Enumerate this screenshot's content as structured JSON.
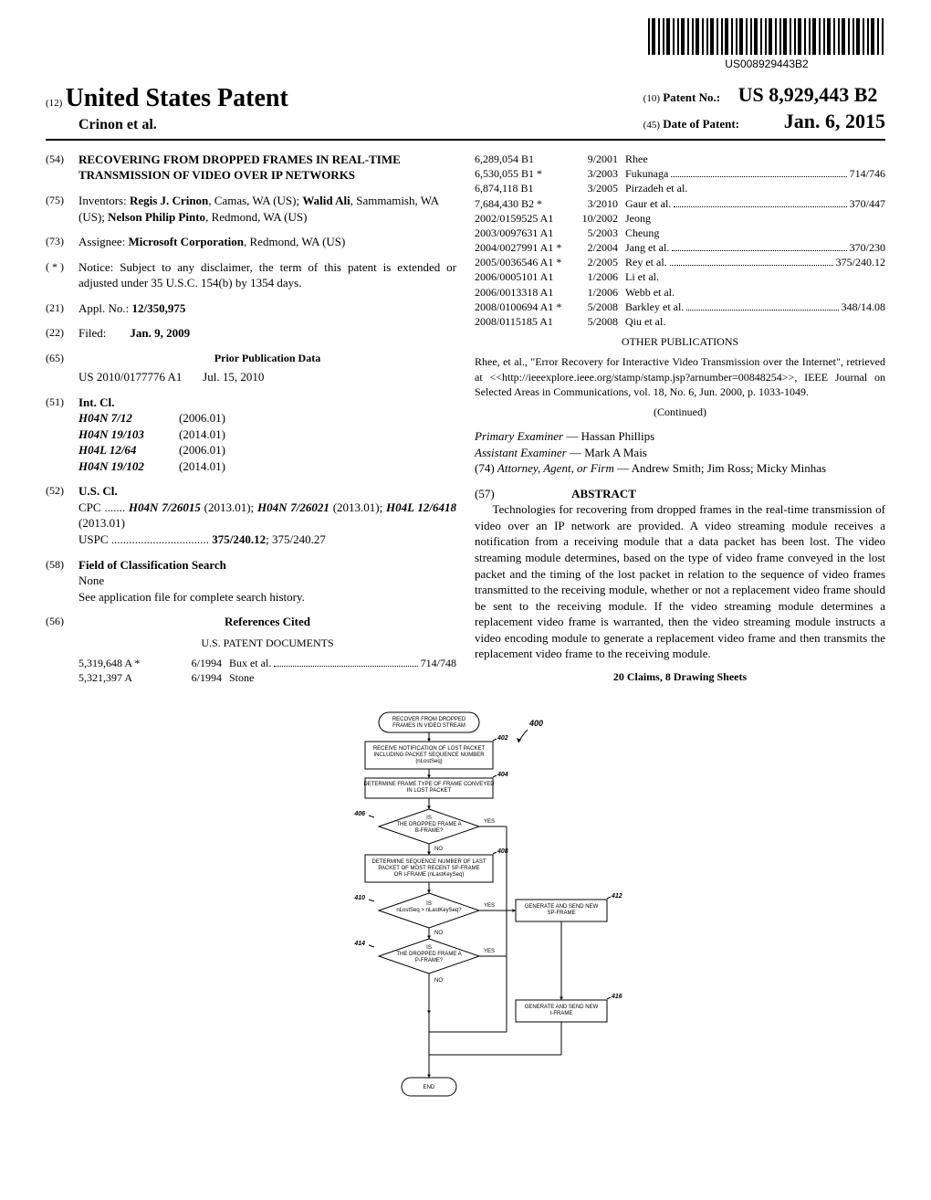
{
  "barcode_text": "US008929443B2",
  "header": {
    "num12": "(12)",
    "usp": "United States Patent",
    "authors": "Crinon et al.",
    "num10": "(10)",
    "patent_no_label": "Patent No.:",
    "patent_no": "US 8,929,443 B2",
    "num45": "(45)",
    "date_label": "Date of Patent:",
    "date": "Jan. 6, 2015"
  },
  "s54": {
    "num": "(54)",
    "title": "RECOVERING FROM DROPPED FRAMES IN REAL-TIME TRANSMISSION OF VIDEO OVER IP NETWORKS"
  },
  "s75": {
    "num": "(75)",
    "label": "Inventors:",
    "text": "Regis J. Crinon, Camas, WA (US); Walid Ali, Sammamish, WA (US); Nelson Philip Pinto, Redmond, WA (US)",
    "b1": "Regis J. Crinon",
    "b2": "Walid Ali",
    "b3": "Nelson Philip Pinto"
  },
  "s73": {
    "num": "(73)",
    "label": "Assignee:",
    "text": "Microsoft Corporation, Redmond, WA (US)",
    "b1": "Microsoft Corporation"
  },
  "snotice": {
    "num": "( * )",
    "label": "Notice:",
    "text": "Subject to any disclaimer, the term of this patent is extended or adjusted under 35 U.S.C. 154(b) by 1354 days."
  },
  "s21": {
    "num": "(21)",
    "label": "Appl. No.:",
    "val": "12/350,975"
  },
  "s22": {
    "num": "(22)",
    "label": "Filed:",
    "val": "Jan. 9, 2009"
  },
  "s65": {
    "num": "(65)",
    "title": "Prior Publication Data",
    "pub": "US 2010/0177776 A1",
    "date": "Jul. 15, 2010"
  },
  "s51": {
    "num": "(51)",
    "label": "Int. Cl.",
    "rows": [
      {
        "code": "H04N 7/12",
        "yr": "(2006.01)"
      },
      {
        "code": "H04N 19/103",
        "yr": "(2014.01)"
      },
      {
        "code": "H04L 12/64",
        "yr": "(2006.01)"
      },
      {
        "code": "H04N 19/102",
        "yr": "(2014.01)"
      }
    ]
  },
  "s52": {
    "num": "(52)",
    "label": "U.S. Cl.",
    "cpc_label": "CPC",
    "cpc_dots": ".......",
    "cpc_text": "H04N 7/26015 (2013.01); H04N 7/26021 (2013.01); H04L 12/6418 (2013.01)",
    "uspc_label": "USPC",
    "uspc_dots": ".................................",
    "uspc_text": "375/240.12; 375/240.27",
    "b1": "H04N 7/26015",
    "b2": "H04N 7/26021",
    "b3": "H04L 12/6418",
    "bold_uspc": "375/240.12"
  },
  "s58": {
    "num": "(58)",
    "label": "Field of Classification Search",
    "none": "None",
    "text": "See application file for complete search history."
  },
  "s56": {
    "num": "(56)",
    "title": "References Cited",
    "sub": "U.S. PATENT DOCUMENTS",
    "left_rows": [
      {
        "c1": "5,319,648 A *",
        "c2": "6/1994",
        "c3": "Bux et al.",
        "tail": "714/748",
        "has_tail": true
      },
      {
        "c1": "5,321,397 A",
        "c2": "6/1994",
        "c3": "Stone",
        "tail": "",
        "has_tail": false
      }
    ]
  },
  "right_cites": [
    {
      "c1": "6,289,054 B1",
      "c2": "9/2001",
      "c3": "Rhee",
      "tail": "",
      "has_tail": false
    },
    {
      "c1": "6,530,055 B1 *",
      "c2": "3/2003",
      "c3": "Fukunaga",
      "tail": "714/746",
      "has_tail": true
    },
    {
      "c1": "6,874,118 B1",
      "c2": "3/2005",
      "c3": "Pirzadeh et al.",
      "tail": "",
      "has_tail": false
    },
    {
      "c1": "7,684,430 B2 *",
      "c2": "3/2010",
      "c3": "Gaur et al.",
      "tail": "370/447",
      "has_tail": true
    },
    {
      "c1": "2002/0159525 A1",
      "c2": "10/2002",
      "c3": "Jeong",
      "tail": "",
      "has_tail": false
    },
    {
      "c1": "2003/0097631 A1",
      "c2": "5/2003",
      "c3": "Cheung",
      "tail": "",
      "has_tail": false
    },
    {
      "c1": "2004/0027991 A1 *",
      "c2": "2/2004",
      "c3": "Jang et al.",
      "tail": "370/230",
      "has_tail": true
    },
    {
      "c1": "2005/0036546 A1 *",
      "c2": "2/2005",
      "c3": "Rey et al.",
      "tail": "375/240.12",
      "has_tail": true
    },
    {
      "c1": "2006/0005101 A1",
      "c2": "1/2006",
      "c3": "Li et al.",
      "tail": "",
      "has_tail": false
    },
    {
      "c1": "2006/0013318 A1",
      "c2": "1/2006",
      "c3": "Webb et al.",
      "tail": "",
      "has_tail": false
    },
    {
      "c1": "2008/0100694 A1 *",
      "c2": "5/2008",
      "c3": "Barkley et al.",
      "tail": "348/14.08",
      "has_tail": true
    },
    {
      "c1": "2008/0115185 A1",
      "c2": "5/2008",
      "c3": "Qiu et al.",
      "tail": "",
      "has_tail": false
    }
  ],
  "other_pubs": {
    "title": "OTHER PUBLICATIONS",
    "text": "Rhee, et al., \"Error Recovery for Interactive Video Transmission over the Internet\", retrieved at <<http://ieeexplore.ieee.org/stamp/stamp.jsp?arnumber=00848254>>, IEEE Journal on Selected Areas in Communications, vol. 18, No. 6, Jun. 2000, p. 1033-1049.",
    "continued": "(Continued)"
  },
  "examiners": {
    "pe_label": "Primary Examiner",
    "pe": "Hassan Phillips",
    "ae_label": "Assistant Examiner",
    "ae": "Mark A Mais",
    "atty_num": "(74)",
    "atty_label": "Attorney, Agent, or Firm",
    "atty": "Andrew Smith; Jim Ross; Micky Minhas"
  },
  "abstract": {
    "num": "(57)",
    "title": "ABSTRACT",
    "text": "Technologies for recovering from dropped frames in the real-time transmission of video over an IP network are provided. A video streaming module receives a notification from a receiving module that a data packet has been lost. The video streaming module determines, based on the type of video frame conveyed in the lost packet and the timing of the lost packet in relation to the sequence of video frames transmitted to the receiving module, whether or not a replacement video frame should be sent to the receiving module. If the video streaming module determines a replacement video frame is warranted, then the video streaming module instructs a video encoding module to generate a replacement video frame and then transmits the replacement video frame to the receiving module.",
    "claims": "20 Claims, 8 Drawing Sheets"
  },
  "flowchart": {
    "background": "#ffffff",
    "stroke": "#000000",
    "font_size": 6,
    "ref_font_size": 7,
    "ref400": "400",
    "boxes": {
      "start": {
        "text": "RECOVER FROM DROPPED\nFRAMES IN VIDEO STREAM"
      },
      "b402": {
        "ref": "402",
        "text": "RECEIVE NOTIFICATION OF LOST PACKET\nINCLUDING PACKET SEQUENCE NUMBER\n(nLostSeq)"
      },
      "b404": {
        "ref": "404",
        "text": "DETERMINE FRAME TYPE OF FRAME CONVEYED\nIN LOST PACKET"
      },
      "d406": {
        "ref": "406",
        "text": "IS\nTHE DROPPED FRAME A\nB-FRAME?"
      },
      "b408": {
        "ref": "408",
        "text": "DETERMINE SEQUENCE NUMBER OF LAST\nPACKET OF MOST RECENT SP-FRAME\nOR I-FRAME (nLastKeySeq)"
      },
      "d410": {
        "ref": "410",
        "text": "IS\nnLostSeq > nLastKeySeq?"
      },
      "b412": {
        "ref": "412",
        "text": "GENERATE AND SEND NEW\nSP-FRAME"
      },
      "d414": {
        "ref": "414",
        "text": "IS\nTHE DROPPED FRAME A\nP-FRAME?"
      },
      "b416": {
        "ref": "416",
        "text": "GENERATE AND SEND NEW\nI-FRAME"
      },
      "end": {
        "text": "END"
      }
    },
    "yes": "YES",
    "no": "NO"
  }
}
